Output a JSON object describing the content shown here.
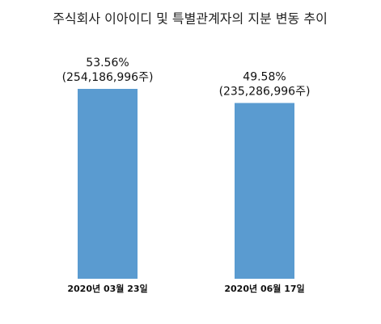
{
  "chart_data": {
    "type": "bar",
    "title": "주식회사 이아이디 및 특별관계자의 지분 변동 추이",
    "categories": [
      "2020년 03월 23일",
      "2020년 06월 17일"
    ],
    "values": [
      53.56,
      49.58
    ],
    "value_labels": [
      "53.56%",
      "49.58%"
    ],
    "share_labels": [
      "(254,186,996주)",
      "(235,286,996주)"
    ],
    "color": "#5a9bd0"
  }
}
